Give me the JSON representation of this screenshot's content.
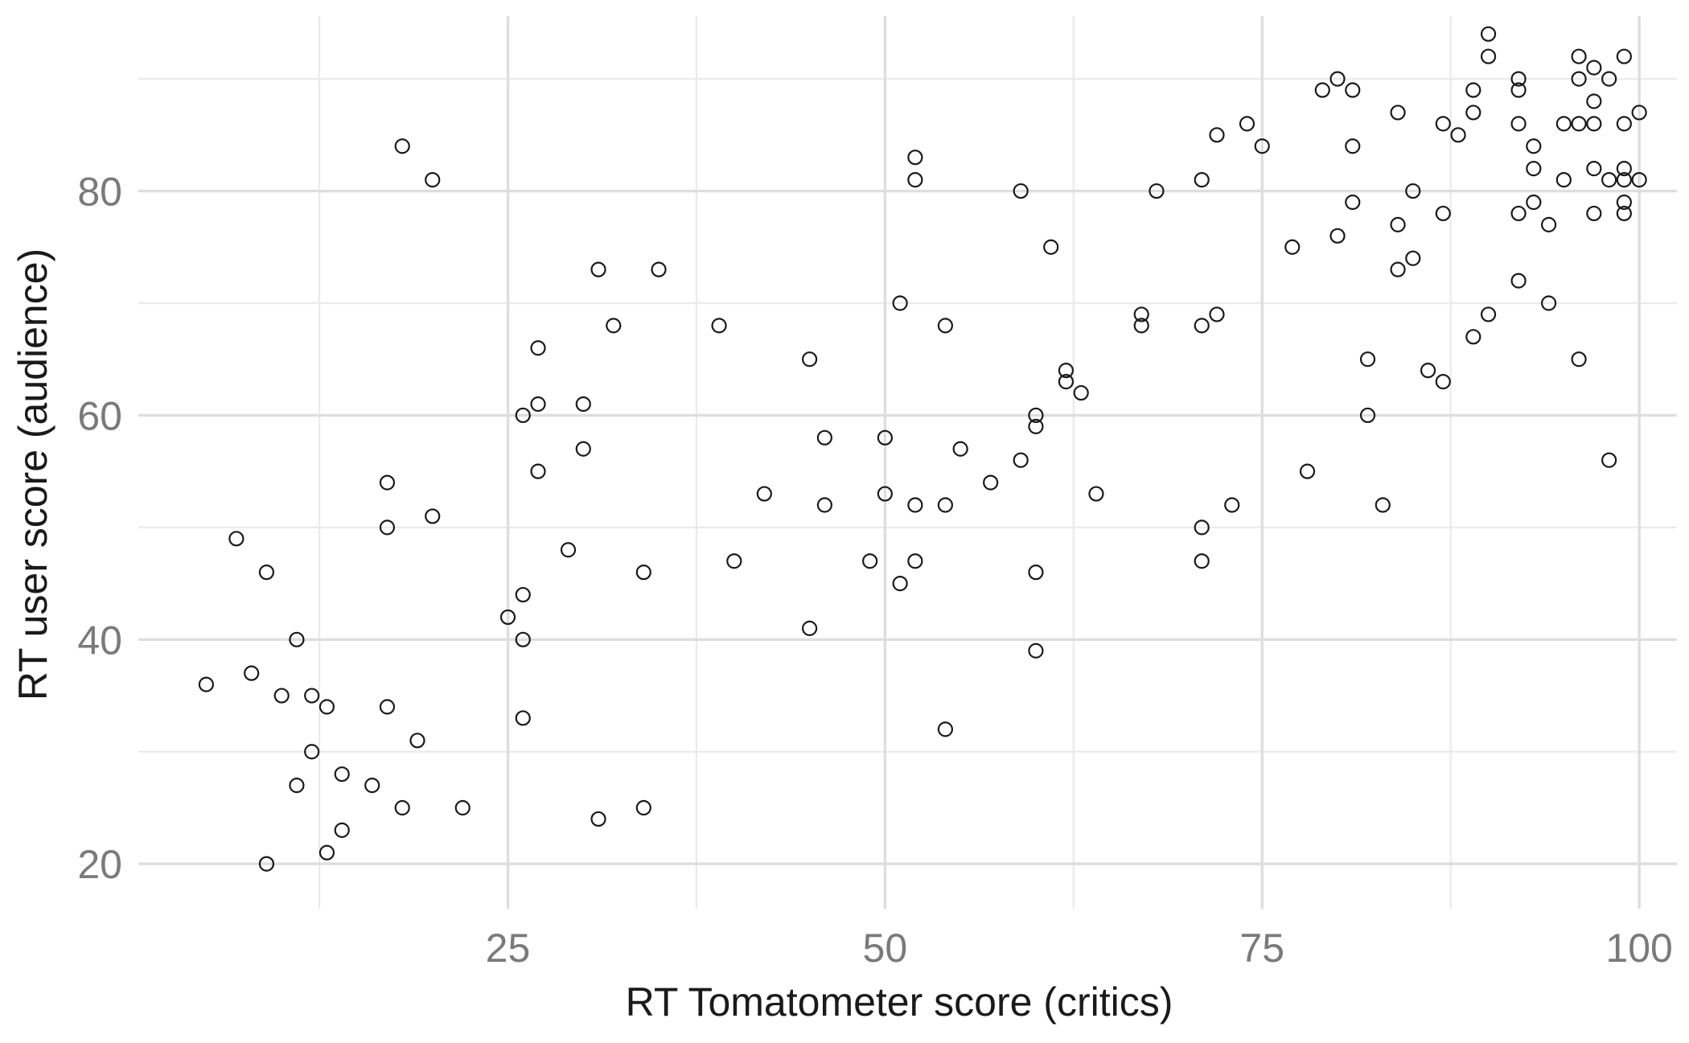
{
  "chart_data": {
    "type": "scatter",
    "title": "",
    "xlabel": "RT Tomatometer score (critics)",
    "ylabel": "RT user score (audience)",
    "xlim": [
      0.5,
      102.5
    ],
    "ylim": [
      16,
      95.6
    ],
    "x_ticks": [
      25,
      50,
      75,
      100
    ],
    "y_ticks": [
      20,
      40,
      60,
      80
    ],
    "x_minor_ticks": [
      12.5,
      37.5,
      62.5,
      87.5
    ],
    "y_minor_ticks": [
      30,
      50,
      70,
      90
    ],
    "grid": true,
    "legend": "none",
    "points": [
      {
        "x": 5,
        "y": 36
      },
      {
        "x": 7,
        "y": 49
      },
      {
        "x": 8,
        "y": 37
      },
      {
        "x": 9,
        "y": 46
      },
      {
        "x": 9,
        "y": 20
      },
      {
        "x": 10,
        "y": 35
      },
      {
        "x": 11,
        "y": 40
      },
      {
        "x": 11,
        "y": 27
      },
      {
        "x": 12,
        "y": 35
      },
      {
        "x": 12,
        "y": 30
      },
      {
        "x": 13,
        "y": 34
      },
      {
        "x": 13,
        "y": 21
      },
      {
        "x": 14,
        "y": 28
      },
      {
        "x": 14,
        "y": 23
      },
      {
        "x": 16,
        "y": 27
      },
      {
        "x": 17,
        "y": 54
      },
      {
        "x": 17,
        "y": 50
      },
      {
        "x": 17,
        "y": 34
      },
      {
        "x": 18,
        "y": 84
      },
      {
        "x": 18,
        "y": 25
      },
      {
        "x": 19,
        "y": 31
      },
      {
        "x": 20,
        "y": 81
      },
      {
        "x": 20,
        "y": 51
      },
      {
        "x": 22,
        "y": 25
      },
      {
        "x": 25,
        "y": 42
      },
      {
        "x": 26,
        "y": 60
      },
      {
        "x": 26,
        "y": 44
      },
      {
        "x": 26,
        "y": 40
      },
      {
        "x": 26,
        "y": 33
      },
      {
        "x": 27,
        "y": 66
      },
      {
        "x": 27,
        "y": 61
      },
      {
        "x": 27,
        "y": 55
      },
      {
        "x": 29,
        "y": 48
      },
      {
        "x": 30,
        "y": 61
      },
      {
        "x": 30,
        "y": 57
      },
      {
        "x": 31,
        "y": 73
      },
      {
        "x": 31,
        "y": 24
      },
      {
        "x": 32,
        "y": 68
      },
      {
        "x": 34,
        "y": 46
      },
      {
        "x": 34,
        "y": 25
      },
      {
        "x": 35,
        "y": 73
      },
      {
        "x": 39,
        "y": 68
      },
      {
        "x": 40,
        "y": 47
      },
      {
        "x": 42,
        "y": 53
      },
      {
        "x": 45,
        "y": 65
      },
      {
        "x": 45,
        "y": 41
      },
      {
        "x": 46,
        "y": 58
      },
      {
        "x": 46,
        "y": 52
      },
      {
        "x": 49,
        "y": 47
      },
      {
        "x": 50,
        "y": 58
      },
      {
        "x": 50,
        "y": 53
      },
      {
        "x": 51,
        "y": 70
      },
      {
        "x": 51,
        "y": 45
      },
      {
        "x": 52,
        "y": 83
      },
      {
        "x": 52,
        "y": 81
      },
      {
        "x": 52,
        "y": 52
      },
      {
        "x": 52,
        "y": 47
      },
      {
        "x": 54,
        "y": 68
      },
      {
        "x": 54,
        "y": 52
      },
      {
        "x": 54,
        "y": 32
      },
      {
        "x": 55,
        "y": 57
      },
      {
        "x": 57,
        "y": 54
      },
      {
        "x": 59,
        "y": 80
      },
      {
        "x": 59,
        "y": 56
      },
      {
        "x": 60,
        "y": 60
      },
      {
        "x": 60,
        "y": 59
      },
      {
        "x": 60,
        "y": 46
      },
      {
        "x": 60,
        "y": 39
      },
      {
        "x": 61,
        "y": 75
      },
      {
        "x": 62,
        "y": 64
      },
      {
        "x": 62,
        "y": 63
      },
      {
        "x": 63,
        "y": 62
      },
      {
        "x": 64,
        "y": 53
      },
      {
        "x": 67,
        "y": 69
      },
      {
        "x": 67,
        "y": 68
      },
      {
        "x": 68,
        "y": 80
      },
      {
        "x": 71,
        "y": 81
      },
      {
        "x": 71,
        "y": 68
      },
      {
        "x": 71,
        "y": 50
      },
      {
        "x": 71,
        "y": 47
      },
      {
        "x": 72,
        "y": 85
      },
      {
        "x": 72,
        "y": 69
      },
      {
        "x": 73,
        "y": 52
      },
      {
        "x": 74,
        "y": 86
      },
      {
        "x": 75,
        "y": 84
      },
      {
        "x": 77,
        "y": 75
      },
      {
        "x": 78,
        "y": 55
      },
      {
        "x": 79,
        "y": 89
      },
      {
        "x": 80,
        "y": 90
      },
      {
        "x": 80,
        "y": 76
      },
      {
        "x": 81,
        "y": 89
      },
      {
        "x": 81,
        "y": 84
      },
      {
        "x": 81,
        "y": 79
      },
      {
        "x": 82,
        "y": 65
      },
      {
        "x": 82,
        "y": 60
      },
      {
        "x": 83,
        "y": 52
      },
      {
        "x": 84,
        "y": 87
      },
      {
        "x": 84,
        "y": 77
      },
      {
        "x": 84,
        "y": 73
      },
      {
        "x": 85,
        "y": 80
      },
      {
        "x": 85,
        "y": 74
      },
      {
        "x": 86,
        "y": 64
      },
      {
        "x": 87,
        "y": 86
      },
      {
        "x": 87,
        "y": 78
      },
      {
        "x": 87,
        "y": 63
      },
      {
        "x": 88,
        "y": 85
      },
      {
        "x": 89,
        "y": 89
      },
      {
        "x": 89,
        "y": 87
      },
      {
        "x": 89,
        "y": 67
      },
      {
        "x": 90,
        "y": 94
      },
      {
        "x": 90,
        "y": 92
      },
      {
        "x": 90,
        "y": 69
      },
      {
        "x": 92,
        "y": 90
      },
      {
        "x": 92,
        "y": 89
      },
      {
        "x": 92,
        "y": 86
      },
      {
        "x": 92,
        "y": 78
      },
      {
        "x": 92,
        "y": 72
      },
      {
        "x": 93,
        "y": 84
      },
      {
        "x": 93,
        "y": 82
      },
      {
        "x": 93,
        "y": 79
      },
      {
        "x": 94,
        "y": 77
      },
      {
        "x": 94,
        "y": 70
      },
      {
        "x": 95,
        "y": 86
      },
      {
        "x": 95,
        "y": 81
      },
      {
        "x": 96,
        "y": 92
      },
      {
        "x": 96,
        "y": 90
      },
      {
        "x": 96,
        "y": 86
      },
      {
        "x": 96,
        "y": 65
      },
      {
        "x": 97,
        "y": 91
      },
      {
        "x": 97,
        "y": 88
      },
      {
        "x": 97,
        "y": 86
      },
      {
        "x": 97,
        "y": 82
      },
      {
        "x": 97,
        "y": 78
      },
      {
        "x": 98,
        "y": 90
      },
      {
        "x": 98,
        "y": 81
      },
      {
        "x": 98,
        "y": 56
      },
      {
        "x": 99,
        "y": 92
      },
      {
        "x": 99,
        "y": 86
      },
      {
        "x": 99,
        "y": 82
      },
      {
        "x": 99,
        "y": 81
      },
      {
        "x": 99,
        "y": 79
      },
      {
        "x": 99,
        "y": 78
      },
      {
        "x": 100,
        "y": 87
      },
      {
        "x": 100,
        "y": 81
      }
    ]
  }
}
